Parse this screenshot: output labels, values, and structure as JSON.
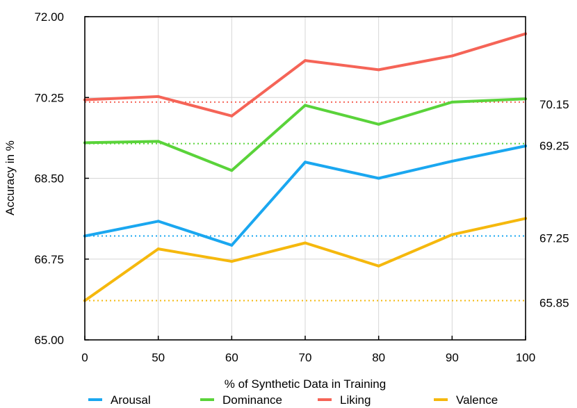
{
  "chart_data": {
    "type": "line",
    "title": "",
    "xlabel": "% of Synthetic Data in Training",
    "ylabel": "Accuracy in %",
    "categories": [
      "0",
      "50",
      "60",
      "70",
      "80",
      "90",
      "100"
    ],
    "yticks": [
      "65.00",
      "66.75",
      "68.50",
      "70.25",
      "72.00"
    ],
    "ylim": [
      65.0,
      72.0
    ],
    "grid": true,
    "legend_position": "bottom",
    "series": [
      {
        "name": "Arousal",
        "color": "#1aa7f0",
        "values": [
          67.25,
          67.57,
          67.05,
          68.85,
          68.5,
          68.87,
          69.2
        ]
      },
      {
        "name": "Dominance",
        "color": "#5ad33a",
        "values": [
          69.27,
          69.3,
          68.67,
          70.08,
          69.67,
          70.15,
          70.22
        ]
      },
      {
        "name": "Liking",
        "color": "#f56457",
        "values": [
          70.2,
          70.27,
          69.85,
          71.05,
          70.85,
          71.15,
          71.63
        ]
      },
      {
        "name": "Valence",
        "color": "#f5b80d",
        "values": [
          65.85,
          66.97,
          66.7,
          67.1,
          66.6,
          67.28,
          67.63
        ]
      }
    ],
    "reference_lines": [
      {
        "value": 70.15,
        "label": "70.15",
        "color": "#f56457"
      },
      {
        "value": 69.25,
        "label": "69.25",
        "color": "#5ad33a"
      },
      {
        "value": 67.25,
        "label": "67.25",
        "color": "#1aa7f0"
      },
      {
        "value": 65.85,
        "label": "65.85",
        "color": "#f5b80d"
      }
    ]
  }
}
